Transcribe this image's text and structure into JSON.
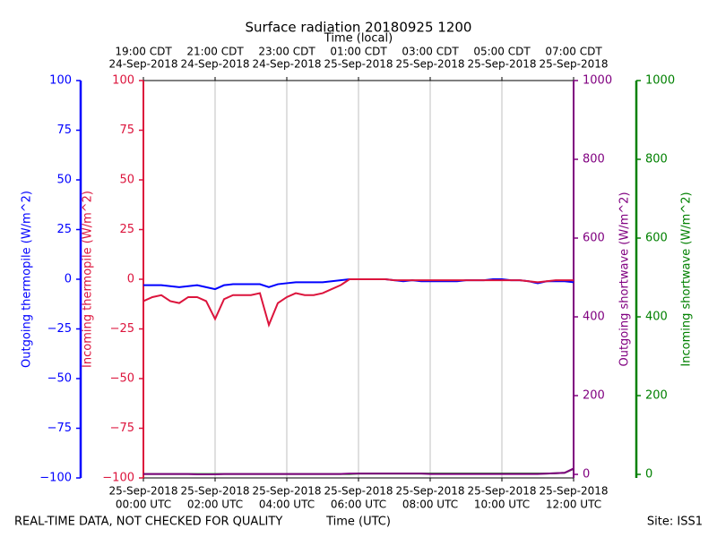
{
  "chart_data": {
    "type": "line",
    "title": "Surface radiation 20180925 1200",
    "xlabel": "Time (UTC)",
    "x2label": "Time (local)",
    "footer_left": "REAL-TIME DATA, NOT CHECKED FOR QUALITY",
    "footer_right": "Site: ISS1",
    "grid": true,
    "x": [
      0,
      0.25,
      0.5,
      0.75,
      1,
      1.25,
      1.5,
      1.75,
      2,
      2.25,
      2.5,
      2.75,
      3,
      3.25,
      3.5,
      3.75,
      4,
      4.25,
      4.5,
      4.75,
      5,
      5.25,
      5.5,
      5.75,
      6,
      6.25,
      6.5,
      6.75,
      7,
      7.25,
      7.5,
      7.75,
      8,
      8.25,
      8.5,
      8.75,
      9,
      9.25,
      9.5,
      9.75,
      10,
      10.25,
      10.5,
      10.75,
      11,
      11.25,
      11.5,
      11.75,
      12
    ],
    "xlim": [
      0,
      12
    ],
    "xticks": [
      {
        "value": 0,
        "label": [
          "25-Sep-2018",
          "00:00 UTC"
        ]
      },
      {
        "value": 2,
        "label": [
          "25-Sep-2018",
          "02:00 UTC"
        ]
      },
      {
        "value": 4,
        "label": [
          "25-Sep-2018",
          "04:00 UTC"
        ]
      },
      {
        "value": 6,
        "label": [
          "25-Sep-2018",
          "06:00 UTC"
        ]
      },
      {
        "value": 8,
        "label": [
          "25-Sep-2018",
          "08:00 UTC"
        ]
      },
      {
        "value": 10,
        "label": [
          "25-Sep-2018",
          "10:00 UTC"
        ]
      },
      {
        "value": 12,
        "label": [
          "25-Sep-2018",
          "12:00 UTC"
        ]
      }
    ],
    "x2ticks": [
      {
        "value": 0,
        "label": [
          "19:00 CDT",
          "24-Sep-2018"
        ]
      },
      {
        "value": 2,
        "label": [
          "21:00 CDT",
          "24-Sep-2018"
        ]
      },
      {
        "value": 4,
        "label": [
          "23:00 CDT",
          "24-Sep-2018"
        ]
      },
      {
        "value": 6,
        "label": [
          "01:00 CDT",
          "25-Sep-2018"
        ]
      },
      {
        "value": 8,
        "label": [
          "03:00 CDT",
          "25-Sep-2018"
        ]
      },
      {
        "value": 10,
        "label": [
          "05:00 CDT",
          "25-Sep-2018"
        ]
      },
      {
        "value": 12,
        "label": [
          "07:00 CDT",
          "25-Sep-2018"
        ]
      }
    ],
    "ylabel": "Outgoing thermopile (W/m^2)",
    "ylim": [
      -100,
      100
    ],
    "yticks": [
      {
        "value": -100,
        "label": "−100"
      },
      {
        "value": -75,
        "label": "−75"
      },
      {
        "value": -50,
        "label": "−50"
      },
      {
        "value": -25,
        "label": "−25"
      },
      0,
      25,
      50,
      75,
      100
    ],
    "y2label": "Incoming thermopile (W/m^2)",
    "y2lim": [
      -100,
      100
    ],
    "y2ticks": [
      {
        "value": -100,
        "label": "−100"
      },
      {
        "value": -75,
        "label": "−75"
      },
      {
        "value": -50,
        "label": "−50"
      },
      {
        "value": -25,
        "label": "−25"
      },
      0,
      25,
      50,
      75,
      100
    ],
    "y3label": "Outgoing shortwave (W/m^2)",
    "y3lim": [
      -9,
      1000
    ],
    "y3ticks": [
      0,
      200,
      400,
      600,
      800,
      1000
    ],
    "y4label": "Incoming shortwave (W/m^2)",
    "y4lim": [
      -9,
      1000
    ],
    "y4ticks": [
      0,
      200,
      400,
      600,
      800,
      1000
    ],
    "series": [
      {
        "name": "Incoming shortwave",
        "color": "#008000",
        "axis": "y4",
        "values": [
          1,
          1,
          1,
          1,
          1,
          1,
          1,
          1,
          1,
          1,
          1,
          1,
          1,
          1,
          1,
          1,
          1,
          1,
          1,
          1,
          1,
          1,
          1,
          1,
          2,
          2,
          2,
          2,
          2,
          2,
          2,
          2,
          2,
          2,
          2,
          2,
          2,
          2,
          2,
          2,
          2,
          2,
          2,
          2,
          2,
          2,
          3,
          4,
          14
        ]
      },
      {
        "name": "Outgoing shortwave",
        "color": "#800080",
        "axis": "y3",
        "values": [
          1,
          1,
          1,
          1,
          1,
          1,
          0,
          0,
          0,
          1,
          1,
          1,
          1,
          1,
          1,
          1,
          1,
          1,
          1,
          1,
          1,
          1,
          1,
          2,
          2,
          2,
          2,
          2,
          2,
          2,
          2,
          2,
          1,
          1,
          1,
          1,
          1,
          1,
          1,
          1,
          1,
          1,
          1,
          1,
          1,
          2,
          3,
          4,
          15
        ]
      },
      {
        "name": "Outgoing thermopile",
        "color": "#0000ff",
        "axis": "y",
        "values": [
          -3,
          -3,
          -3,
          -3.5,
          -4,
          -3.5,
          -3,
          -4,
          -5,
          -3,
          -2.5,
          -2.5,
          -2.5,
          -2.5,
          -4,
          -2.5,
          -2,
          -1.5,
          -1.5,
          -1.5,
          -1.5,
          -1,
          -0.5,
          0,
          0,
          0,
          0,
          0,
          -0.5,
          -1,
          -0.5,
          -1,
          -1,
          -1,
          -1,
          -1,
          -0.5,
          -0.5,
          -0.5,
          0,
          0,
          -0.5,
          -0.5,
          -1,
          -2,
          -1,
          -1,
          -1,
          -1.5
        ]
      },
      {
        "name": "Incoming thermopile",
        "color": "#dc143c",
        "axis": "y2",
        "values": [
          -11,
          -9,
          -8,
          -11,
          -12,
          -9,
          -9,
          -11,
          -20,
          -10,
          -8,
          -8,
          -8,
          -7,
          -23,
          -12,
          -9,
          -7,
          -8,
          -8,
          -7,
          -5,
          -3,
          0,
          0,
          0,
          0,
          0,
          -0.5,
          -0.5,
          -0.5,
          -0.5,
          -0.5,
          -0.5,
          -0.5,
          -0.5,
          -0.5,
          -0.5,
          -0.5,
          -0.5,
          -0.5,
          -0.5,
          -0.5,
          -1,
          -1.5,
          -1,
          -0.5,
          -0.5,
          -0.5
        ]
      }
    ]
  }
}
